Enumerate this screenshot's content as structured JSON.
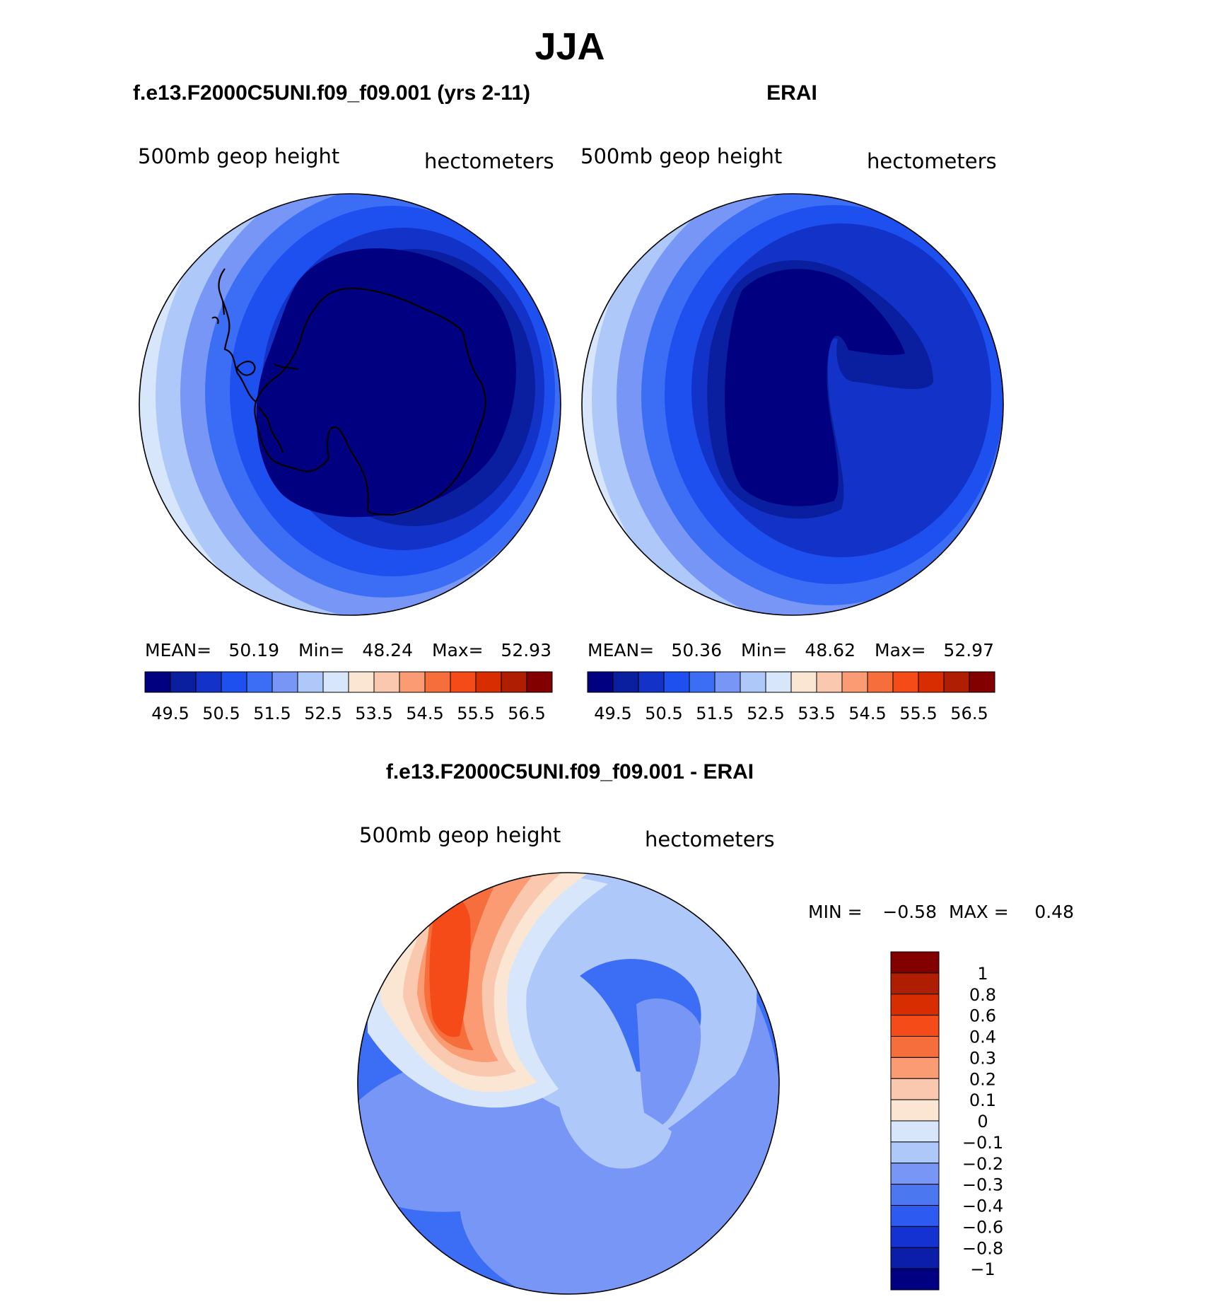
{
  "title": "JJA",
  "chart_data": [
    {
      "type": "heatmap",
      "subtitle": "f.e13.F2000C5UNI.f09_f09.001 (yrs 2-11)",
      "left_label": "500mb geop height",
      "right_label": "hectometers",
      "stats": {
        "mean_label": "MEAN=",
        "mean": "50.19",
        "min_label": "Min=",
        "min": "48.24",
        "max_label": "Max=",
        "max": "52.93"
      },
      "colorbar_ticks": [
        "49.5",
        "50.5",
        "51.5",
        "52.5",
        "53.5",
        "54.5",
        "55.5",
        "56.5"
      ],
      "contour_levels": [
        49,
        49.5,
        50,
        50.5,
        51,
        51.5,
        52,
        52.5,
        53,
        53.5,
        54,
        54.5,
        55,
        55.5,
        56,
        56.5
      ]
    },
    {
      "type": "heatmap",
      "subtitle": "ERAI",
      "left_label": "500mb geop height",
      "right_label": "hectometers",
      "stats": {
        "mean_label": "MEAN=",
        "mean": "50.36",
        "min_label": "Min=",
        "min": "48.62",
        "max_label": "Max=",
        "max": "52.97"
      },
      "colorbar_ticks": [
        "49.5",
        "50.5",
        "51.5",
        "52.5",
        "53.5",
        "54.5",
        "55.5",
        "56.5"
      ],
      "contour_levels": [
        49,
        49.5,
        50,
        50.5,
        51,
        51.5,
        52,
        52.5,
        53,
        53.5,
        54,
        54.5,
        55,
        55.5,
        56,
        56.5
      ]
    },
    {
      "type": "heatmap",
      "subtitle": "f.e13.F2000C5UNI.f09_f09.001 - ERAI",
      "left_label": "500mb geop height",
      "right_label": "hectometers",
      "stats": {
        "min_label": "MIN =",
        "min": "−0.58",
        "max_label": "MAX =",
        "max": "0.48"
      },
      "colorbar_ticks": [
        "1",
        "0.8",
        "0.6",
        "0.4",
        "0.3",
        "0.2",
        "0.1",
        "0",
        "−0.1",
        "−0.2",
        "−0.3",
        "−0.4",
        "−0.6",
        "−0.8",
        "−1"
      ]
    }
  ],
  "colors": {
    "scale16": [
      "#000080",
      "#0a1ea0",
      "#1232c8",
      "#1e50f0",
      "#3c6ef5",
      "#7896f5",
      "#afc8fa",
      "#d7e6fa",
      "#fae6d2",
      "#fac8af",
      "#fa9b73",
      "#f56e3c",
      "#f54b19",
      "#d72d00",
      "#af1e00",
      "#820000"
    ],
    "diff16": [
      "#820000",
      "#af1e00",
      "#d72d00",
      "#f54b19",
      "#f56e3c",
      "#fa9b73",
      "#fac8af",
      "#fae6d2",
      "#d7e6fa",
      "#afc8fa",
      "#7896f5",
      "#4b78f0",
      "#2d5af0",
      "#1432d2",
      "#0a1eaa",
      "#000080"
    ],
    "outline": "#000000"
  }
}
